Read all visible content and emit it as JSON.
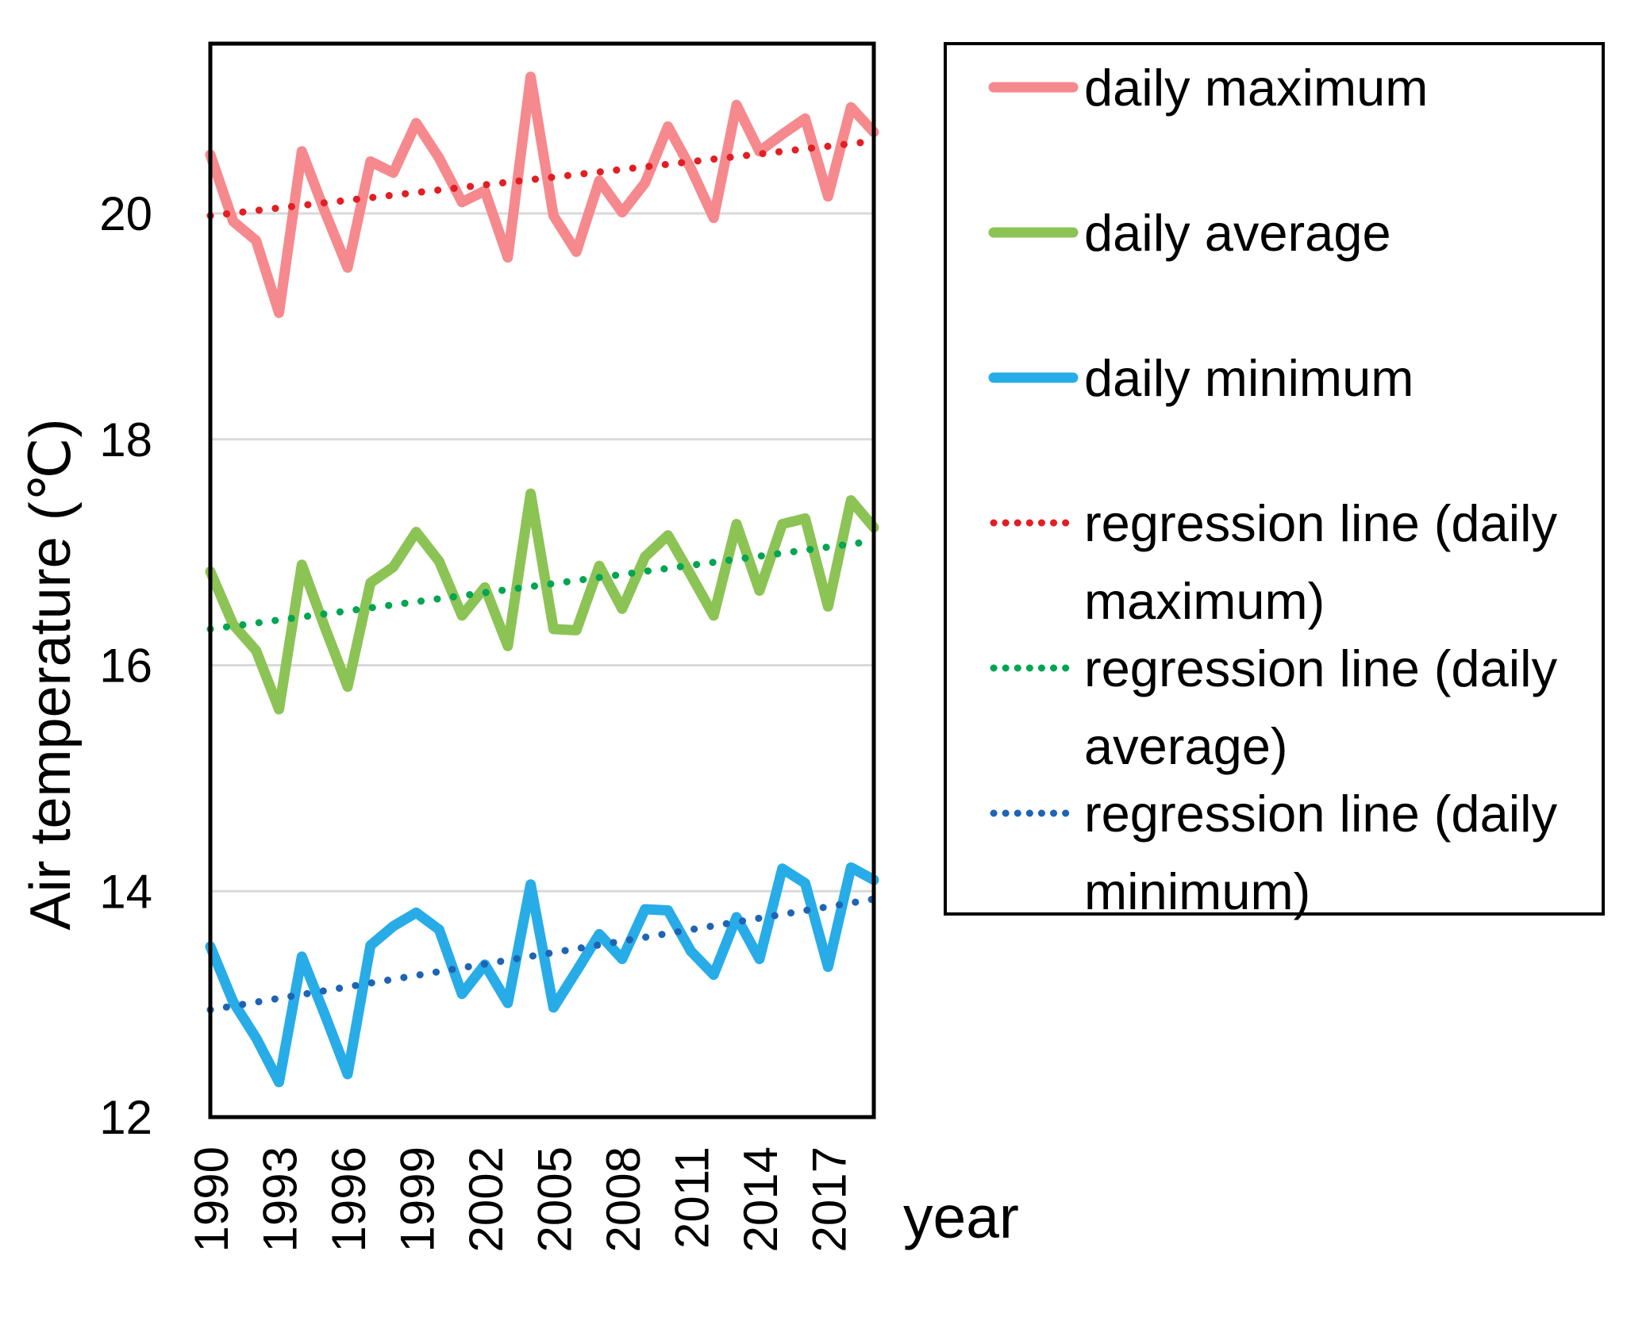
{
  "page": {
    "background": "#FFFFFF"
  },
  "axes": {
    "y_title": "Air temperature (℃)",
    "x_title": "year"
  },
  "legend": {
    "entries": [
      {
        "lines": [
          "daily maximum"
        ],
        "swatch": "solid",
        "color": "#F6898D"
      },
      {
        "lines": [
          "daily average"
        ],
        "swatch": "solid",
        "color": "#8CC355"
      },
      {
        "lines": [
          "daily minimum"
        ],
        "swatch": "solid",
        "color": "#27ACE8"
      },
      {
        "lines": [
          "regression line (daily",
          "maximum)"
        ],
        "swatch": "dotted",
        "color": "#E31E23"
      },
      {
        "lines": [
          "regression line (daily",
          "average)"
        ],
        "swatch": "dotted",
        "color": "#00A551"
      },
      {
        "lines": [
          "regression line (daily",
          "minimum)"
        ],
        "swatch": "dotted",
        "color": "#1E64B4"
      }
    ]
  },
  "chart_data": {
    "type": "line",
    "title": "",
    "xlabel": "year",
    "ylabel": "Air temperature (℃)",
    "x": [
      1990,
      1991,
      1992,
      1993,
      1994,
      1995,
      1996,
      1997,
      1998,
      1999,
      2000,
      2001,
      2002,
      2003,
      2004,
      2005,
      2006,
      2007,
      2008,
      2009,
      2010,
      2011,
      2012,
      2013,
      2014,
      2015,
      2016,
      2017,
      2018,
      2019
    ],
    "x_axis": {
      "tick_years": [
        1990,
        1993,
        1996,
        1999,
        2002,
        2005,
        2008,
        2011,
        2014,
        2017
      ],
      "tick_labels": [
        "1990",
        "1993",
        "1996",
        "1999",
        "2002",
        "2005",
        "2008",
        "2011",
        "2014",
        "2017"
      ]
    },
    "y_axis": {
      "ticks": [
        12,
        14,
        16,
        18,
        20
      ],
      "range": [
        12,
        21.5
      ],
      "gridlines": [
        14,
        16,
        18,
        20
      ],
      "grid_color": "#D9D9D9"
    },
    "legend_position": "right",
    "series": [
      {
        "name": "daily maximum",
        "style": "solid",
        "color": "#F6898D",
        "values": [
          20.52,
          19.93,
          19.76,
          19.12,
          20.55,
          20.02,
          19.52,
          20.46,
          20.36,
          20.8,
          20.49,
          20.1,
          20.2,
          19.61,
          21.21,
          19.98,
          19.66,
          20.29,
          20.01,
          20.27,
          20.77,
          20.4,
          19.96,
          20.96,
          20.55,
          20.7,
          20.84,
          20.15,
          20.94,
          20.72
        ]
      },
      {
        "name": "daily average",
        "style": "solid",
        "color": "#8CC355",
        "values": [
          16.83,
          16.36,
          16.13,
          15.61,
          16.89,
          16.34,
          15.81,
          16.73,
          16.87,
          17.18,
          16.92,
          16.44,
          16.69,
          16.17,
          17.52,
          16.32,
          16.31,
          16.88,
          16.5,
          16.96,
          17.15,
          16.8,
          16.44,
          17.25,
          16.66,
          17.25,
          17.3,
          16.52,
          17.46,
          17.22
        ]
      },
      {
        "name": "daily minimum",
        "style": "solid",
        "color": "#27ACE8",
        "values": [
          13.51,
          13.02,
          12.7,
          12.31,
          13.42,
          12.91,
          12.38,
          13.52,
          13.69,
          13.81,
          13.66,
          13.09,
          13.35,
          13.01,
          14.06,
          12.97,
          13.29,
          13.62,
          13.4,
          13.84,
          13.83,
          13.47,
          13.26,
          13.77,
          13.4,
          14.2,
          14.07,
          13.33,
          14.21,
          14.1
        ]
      },
      {
        "name": "regression line (daily maximum)",
        "style": "dotted",
        "color": "#E31E23",
        "x": [
          1990,
          2019
        ],
        "values": [
          19.98,
          20.64
        ]
      },
      {
        "name": "regression line (daily average)",
        "style": "dotted",
        "color": "#00A551",
        "x": [
          1990,
          2019
        ],
        "values": [
          16.32,
          17.1
        ]
      },
      {
        "name": "regression line (daily minimum)",
        "style": "dotted",
        "color": "#1E64B4",
        "x": [
          1990,
          2019
        ],
        "values": [
          12.95,
          13.93
        ]
      }
    ]
  }
}
